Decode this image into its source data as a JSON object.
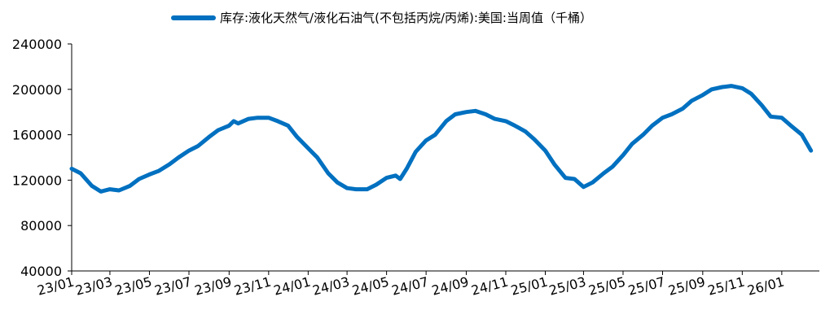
{
  "chart_data": {
    "type": "line",
    "title": "",
    "xlabel": "",
    "ylabel": "",
    "ylim": [
      40000,
      240000
    ],
    "y_ticks": [
      40000,
      80000,
      120000,
      160000,
      200000,
      240000
    ],
    "x_tick_labels": [
      "23/01",
      "23/03",
      "23/05",
      "23/07",
      "23/09",
      "23/11",
      "24/01",
      "24/03",
      "24/05",
      "24/07",
      "24/09",
      "24/11",
      "25/01",
      "25/03",
      "25/05",
      "25/07",
      "25/09",
      "25/11",
      "26/01"
    ],
    "grid": false,
    "legend_position": "top",
    "series": [
      {
        "name": "库存:液化天然气/液化石油气(不包括丙烷/丙烯):美国:当周值（千桶）",
        "color": "#0070C0",
        "x": [
          "2023-01-01",
          "2023-01-15",
          "2023-02-01",
          "2023-02-15",
          "2023-03-01",
          "2023-03-15",
          "2023-04-01",
          "2023-04-15",
          "2023-05-01",
          "2023-05-15",
          "2023-06-01",
          "2023-06-15",
          "2023-07-01",
          "2023-07-15",
          "2023-08-01",
          "2023-08-15",
          "2023-09-01",
          "2023-09-08",
          "2023-09-15",
          "2023-10-01",
          "2023-10-15",
          "2023-11-01",
          "2023-11-15",
          "2023-12-01",
          "2023-12-15",
          "2024-01-01",
          "2024-01-15",
          "2024-02-01",
          "2024-02-15",
          "2024-03-01",
          "2024-03-15",
          "2024-04-01",
          "2024-04-15",
          "2024-05-01",
          "2024-05-15",
          "2024-05-22",
          "2024-06-01",
          "2024-06-15",
          "2024-07-01",
          "2024-07-15",
          "2024-08-01",
          "2024-08-15",
          "2024-09-01",
          "2024-09-15",
          "2024-10-01",
          "2024-10-15",
          "2024-11-01",
          "2024-11-15",
          "2024-12-01",
          "2024-12-15",
          "2025-01-01",
          "2025-01-15",
          "2025-02-01",
          "2025-02-15",
          "2025-03-01",
          "2025-03-15",
          "2025-04-01",
          "2025-04-15",
          "2025-05-01",
          "2025-05-15",
          "2025-06-01",
          "2025-06-15",
          "2025-07-01",
          "2025-07-15",
          "2025-08-01",
          "2025-08-15",
          "2025-09-01",
          "2025-09-15",
          "2025-10-01",
          "2025-10-15",
          "2025-11-01",
          "2025-11-15",
          "2025-12-01",
          "2025-12-15",
          "2026-01-01",
          "2026-01-15",
          "2026-02-01",
          "2026-02-15"
        ],
        "values": [
          130000,
          126000,
          115000,
          110000,
          112000,
          111000,
          115000,
          121000,
          125000,
          128000,
          134000,
          140000,
          146000,
          150000,
          158000,
          164000,
          168000,
          172000,
          170000,
          174000,
          175000,
          175000,
          172000,
          168000,
          158000,
          148000,
          140000,
          126000,
          118000,
          113000,
          112000,
          112000,
          116000,
          122000,
          124000,
          121000,
          130000,
          145000,
          155000,
          160000,
          172000,
          178000,
          180000,
          181000,
          178000,
          174000,
          172000,
          168000,
          163000,
          156000,
          146000,
          134000,
          122000,
          121000,
          114000,
          118000,
          126000,
          132000,
          142000,
          152000,
          160000,
          168000,
          175000,
          178000,
          183000,
          190000,
          195000,
          200000,
          202000,
          203000,
          201000,
          196000,
          186000,
          176000,
          175000,
          168000,
          160000,
          146000
        ]
      }
    ]
  }
}
